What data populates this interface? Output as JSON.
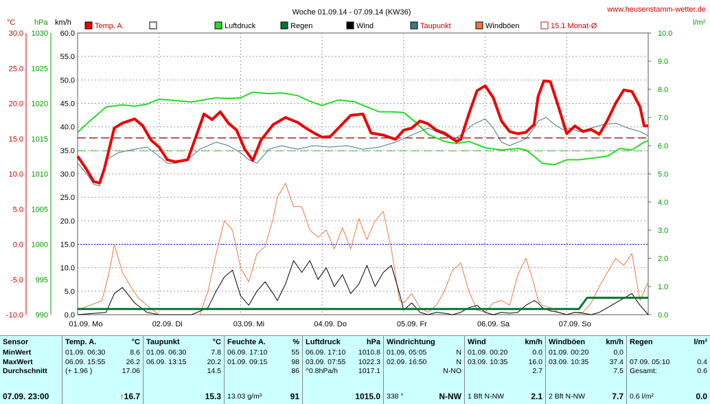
{
  "title": "Woche 01.09.14 - 07.09.14 (KW36)",
  "site": "www.heusenstamm-wetter.de",
  "axes": {
    "temp_unit": "°C",
    "hpa_unit": "hPa",
    "kmh_unit": "km/h",
    "rain_unit": "l/m²",
    "temp_ticks": [
      "30.0",
      "25.0",
      "20.0",
      "15.0",
      "10.0",
      "5.0",
      "0.0",
      "-5.0",
      "-10.0"
    ],
    "hpa_ticks": [
      "1030",
      "1025",
      "1020",
      "1015",
      "1010",
      "1005",
      "1000",
      "995",
      "990"
    ],
    "kmh_ticks": [
      "60.0",
      "55.0",
      "50.0",
      "45.0",
      "40.0",
      "35.0",
      "30.0",
      "25.0",
      "20.0",
      "15.0",
      "10.0",
      "5.0",
      "0.0"
    ],
    "rain_ticks": [
      "10.0",
      "9.0",
      "8.0",
      "7.0",
      "6.0",
      "5.0",
      "4.0",
      "3.0",
      "2.0",
      "1.0",
      "0.0"
    ],
    "day_labels": [
      "01.09.  Mo",
      "02.09.  Di",
      "03.09.  Mi",
      "04.09.  Do",
      "05.09.  Fr",
      "06.09.  Sa",
      "07.09.  So"
    ]
  },
  "legend": [
    "Temp. A.",
    "",
    "Luftdruck",
    "Regen",
    "Wind",
    "Taupunkt",
    "Windböen",
    "15.1 Monat-Ø"
  ],
  "colors": {
    "temp": "#ee0000",
    "pressure": "#22dd22",
    "rain": "#007733",
    "wind": "#000000",
    "dew": "#447788",
    "gust": "#ee7744",
    "avg": "#aa2222",
    "axis_temp": "#cc0000",
    "axis_hpa": "#009900",
    "axis_rain": "#009900"
  },
  "chart_data": {
    "type": "line",
    "title": "Woche 01.09.14 - 07.09.14 (KW36)",
    "x_unit": "days from 01.09.14 00:00",
    "xlim": [
      0,
      7
    ],
    "temp_axis": [
      -10,
      30
    ],
    "hpa_axis": [
      990,
      1030
    ],
    "kmh_axis": [
      0,
      60
    ],
    "rain_axis": [
      0,
      10
    ],
    "month_avg_temp": 15.1,
    "series": [
      {
        "name": "Temp. A.",
        "unit": "°C",
        "x": [
          0,
          0.1,
          0.2,
          0.27,
          0.33,
          0.45,
          0.55,
          0.7,
          0.8,
          0.9,
          1.0,
          1.1,
          1.2,
          1.35,
          1.45,
          1.55,
          1.65,
          1.75,
          1.85,
          1.95,
          2.05,
          2.15,
          2.25,
          2.4,
          2.55,
          2.7,
          2.8,
          2.9,
          3.0,
          3.1,
          3.2,
          3.35,
          3.5,
          3.6,
          3.75,
          3.9,
          4.0,
          4.1,
          4.2,
          4.3,
          4.4,
          4.5,
          4.6,
          4.65,
          4.7,
          4.8,
          4.9,
          5.0,
          5.1,
          5.2,
          5.3,
          5.4,
          5.5,
          5.6,
          5.65,
          5.72,
          5.8,
          5.9,
          6.0,
          6.1,
          6.2,
          6.3,
          6.4,
          6.5,
          6.6,
          6.7,
          6.8,
          6.9,
          6.95,
          7.0
        ],
        "y": [
          12.5,
          10.8,
          8.9,
          8.7,
          10.8,
          16.5,
          17.2,
          17.8,
          16.8,
          14.8,
          13.8,
          12.0,
          11.7,
          12.0,
          15.2,
          18.5,
          17.7,
          18.8,
          17.2,
          16.2,
          13.5,
          11.9,
          14.8,
          17.0,
          18.0,
          17.3,
          16.5,
          15.8,
          15.2,
          15.3,
          16.5,
          18.3,
          18.5,
          15.8,
          15.5,
          14.9,
          16.2,
          16.5,
          17.5,
          17.1,
          16.2,
          15.8,
          15.0,
          14.6,
          14.9,
          18.5,
          21.8,
          22.5,
          20.8,
          17.5,
          16.0,
          15.7,
          15.9,
          17.0,
          21.0,
          23.2,
          23.1,
          19.5,
          15.7,
          16.8,
          16.0,
          16.3,
          15.6,
          17.6,
          20.0,
          21.9,
          21.7,
          19.5,
          16.8,
          16.8
        ]
      },
      {
        "name": "Taupunkt",
        "unit": "°C",
        "x": [
          0,
          0.1,
          0.2,
          0.27,
          0.35,
          0.5,
          0.7,
          0.85,
          1.0,
          1.1,
          1.2,
          1.35,
          1.5,
          1.7,
          1.85,
          2.0,
          2.1,
          2.2,
          2.35,
          2.5,
          2.7,
          2.9,
          3.1,
          3.3,
          3.5,
          3.7,
          3.9,
          4.1,
          4.3,
          4.5,
          4.6,
          4.7,
          4.85,
          5.0,
          5.1,
          5.2,
          5.3,
          5.4,
          5.5,
          5.6,
          5.65,
          5.75,
          5.85,
          5.95,
          6.05,
          6.15,
          6.3,
          6.45,
          6.6,
          6.75,
          6.9,
          7.0
        ],
        "y": [
          11.5,
          10.2,
          8.5,
          8.3,
          12.0,
          13.0,
          13.5,
          13.8,
          12.5,
          11.5,
          11.5,
          12.0,
          13.5,
          14.5,
          14.0,
          13.0,
          12.0,
          11.5,
          13.5,
          14.0,
          13.5,
          14.0,
          13.8,
          14.0,
          13.5,
          13.8,
          14.5,
          15.5,
          16.5,
          15.5,
          14.8,
          15.5,
          17.0,
          17.8,
          16.5,
          14.5,
          14.0,
          14.5,
          15.0,
          16.5,
          17.5,
          18.0,
          17.0,
          16.3,
          16.5,
          16.0,
          16.5,
          17.0,
          17.2,
          16.5,
          16.0,
          15.4
        ]
      },
      {
        "name": "Luftdruck",
        "unit": "hPa",
        "x": [
          0,
          0.15,
          0.35,
          0.55,
          0.7,
          0.85,
          1.0,
          1.2,
          1.4,
          1.55,
          1.7,
          1.85,
          2.0,
          2.15,
          2.35,
          2.5,
          2.7,
          2.85,
          3.0,
          3.2,
          3.4,
          3.55,
          3.7,
          3.85,
          4.0,
          4.15,
          4.3,
          4.5,
          4.65,
          4.8,
          5.0,
          5.2,
          5.4,
          5.5,
          5.6,
          5.7,
          5.85,
          6.0,
          6.15,
          6.3,
          6.5,
          6.65,
          6.8,
          6.95,
          7.0
        ],
        "y": [
          1015.9,
          1017.5,
          1019.5,
          1019.8,
          1019.6,
          1019.9,
          1020.6,
          1020.4,
          1020.2,
          1020.5,
          1020.8,
          1020.7,
          1020.8,
          1021.6,
          1021.4,
          1021.5,
          1021.1,
          1020.3,
          1019.7,
          1020.5,
          1020.2,
          1019.5,
          1018.8,
          1018.8,
          1018.7,
          1017.3,
          1015.6,
          1014.6,
          1014.3,
          1014.6,
          1013.7,
          1013.4,
          1013.6,
          1013.4,
          1012.5,
          1011.5,
          1011.3,
          1012.0,
          1012.0,
          1012.2,
          1012.5,
          1013.6,
          1013.4,
          1014.5,
          1014.7
        ]
      },
      {
        "name": "Wind",
        "unit": "km/h",
        "x": [
          0,
          0.35,
          0.45,
          0.55,
          0.7,
          0.85,
          1.0,
          1.4,
          1.6,
          1.7,
          1.8,
          1.9,
          2.0,
          2.1,
          2.2,
          2.3,
          2.4,
          2.45,
          2.55,
          2.65,
          2.75,
          2.85,
          2.95,
          3.05,
          3.15,
          3.25,
          3.35,
          3.45,
          3.55,
          3.65,
          3.75,
          3.85,
          3.95,
          4.0,
          4.1,
          4.2,
          4.3,
          4.4,
          4.5,
          4.6,
          4.7,
          4.8,
          4.9,
          5.0,
          5.1,
          5.2,
          5.3,
          5.4,
          5.5,
          5.6,
          5.65,
          5.7,
          5.8,
          5.9,
          6.0,
          6.1,
          6.2,
          6.3,
          6.4,
          6.5,
          6.6,
          6.7,
          6.8,
          6.9,
          7.0
        ],
        "y": [
          0,
          0.5,
          4.5,
          5.8,
          2.5,
          0.5,
          0,
          0,
          1.5,
          5.0,
          8.0,
          9.5,
          4.0,
          2.0,
          5.0,
          7.0,
          4.5,
          3.0,
          6.5,
          11.5,
          9.0,
          11.5,
          7.5,
          10.0,
          6.0,
          8.5,
          4.5,
          6.5,
          10.5,
          6.0,
          9.0,
          10.5,
          4.5,
          1.0,
          2.5,
          0.5,
          0,
          0.5,
          0.3,
          0,
          0.5,
          1.5,
          2.0,
          0.5,
          0,
          0.5,
          0.3,
          0.5,
          2.0,
          3.0,
          2.5,
          1.5,
          0.8,
          0.5,
          0,
          0.5,
          0.3,
          0,
          0.5,
          1.5,
          2.5,
          3.5,
          4.5,
          2.0,
          0
        ]
      },
      {
        "name": "Windböen",
        "unit": "km/h",
        "x": [
          0,
          0.3,
          0.4,
          0.45,
          0.55,
          0.65,
          0.75,
          0.85,
          1.0,
          1.5,
          1.6,
          1.7,
          1.8,
          1.9,
          2.0,
          2.1,
          2.2,
          2.3,
          2.4,
          2.45,
          2.55,
          2.65,
          2.75,
          2.85,
          2.95,
          3.05,
          3.15,
          3.25,
          3.35,
          3.45,
          3.55,
          3.65,
          3.75,
          3.85,
          3.95,
          4.0,
          4.1,
          4.2,
          4.3,
          4.4,
          4.5,
          4.6,
          4.7,
          4.8,
          4.9,
          5.0,
          5.1,
          5.2,
          5.3,
          5.4,
          5.5,
          5.6,
          5.65,
          5.7,
          5.8,
          5.9,
          6.0,
          6.1,
          6.2,
          6.3,
          6.4,
          6.5,
          6.6,
          6.7,
          6.8,
          6.9,
          7.0
        ],
        "y": [
          1.0,
          3.0,
          10.0,
          15.0,
          9.0,
          6.0,
          3.5,
          2.0,
          0,
          0,
          5.0,
          13.0,
          20.0,
          18.0,
          10.0,
          7.0,
          13.0,
          14.5,
          20.5,
          25.0,
          28.0,
          23.0,
          23.0,
          18.0,
          16.5,
          18.0,
          14.0,
          18.5,
          14.0,
          20.5,
          16.0,
          20.0,
          22.0,
          14.0,
          3.0,
          2.5,
          4.5,
          1.5,
          0.5,
          2.0,
          5.0,
          9.5,
          11.0,
          5.0,
          1.0,
          0.5,
          2.5,
          3.0,
          2.0,
          8.5,
          12.0,
          6.5,
          3.0,
          2.0,
          1.5,
          0.5,
          0,
          0.5,
          0.5,
          2.5,
          6.0,
          9.0,
          12.0,
          10.5,
          13.0,
          3.0,
          7.0
        ]
      },
      {
        "name": "Regen",
        "unit": "l/m²",
        "x": [
          0,
          5.95,
          6.15,
          6.25,
          7.0
        ],
        "y": [
          0.2,
          0.2,
          0.2,
          0.6,
          0.6
        ]
      }
    ]
  },
  "stats": {
    "sensor": {
      "header": "Sensor",
      "rows": [
        "MinWert",
        "MaxWert",
        "Durchschnitt"
      ],
      "last": "07.09. 23:00"
    },
    "temp": {
      "header": "Temp. A.",
      "unit": "°C",
      "rows": [
        [
          "01.09.  06:30",
          "8.6"
        ],
        [
          "06.09.  15:55",
          "26.2"
        ],
        [
          "(+ 1.96 )",
          "17.06"
        ]
      ],
      "last": "16.7",
      "arrow": "↑"
    },
    "dew": {
      "header": "Taupunkt",
      "unit": "°C",
      "rows": [
        [
          "01.09.  06:30",
          "7.8"
        ],
        [
          "06.09.  13:15",
          "20.2"
        ],
        [
          "",
          "14.5"
        ]
      ],
      "last": "15.3"
    },
    "hum": {
      "header": "Feuchte A.",
      "unit": "%",
      "rows": [
        [
          "06.09.  17:10",
          "55"
        ],
        [
          "01.09.  09:15",
          "98"
        ],
        [
          "",
          "86"
        ]
      ],
      "last_l": "13.03 g/m³",
      "last": "91"
    },
    "pres": {
      "header": "Luftdruck",
      "unit": "hPa",
      "rows": [
        [
          "06.09.  17:10",
          "1010.8"
        ],
        [
          "03.09.  07:55",
          "1022.3"
        ],
        [
          "^0.8hPa/h",
          "1017.1"
        ]
      ],
      "last": "1015.0"
    },
    "dir": {
      "header": "Windrichtung",
      "unit": "",
      "rows": [
        [
          "01.09.  05:05",
          "N"
        ],
        [
          "02.09.  16:50",
          "N"
        ],
        [
          "",
          "N-NO"
        ]
      ],
      "last_l": "338 °",
      "last": "N-NW"
    },
    "wind": {
      "header": "Wind",
      "unit": "km/h",
      "rows": [
        [
          "01.09.  00:20",
          "0.0"
        ],
        [
          "03.09.  10:35",
          "16.0"
        ],
        [
          "",
          "2.7"
        ]
      ],
      "last_l": "1 Bft N-NW",
      "last": "2.1"
    },
    "gust": {
      "header": "Windböen",
      "unit": "km/h",
      "rows": [
        [
          "01.09.  00:20",
          "0.0"
        ],
        [
          "03.09.  10:35",
          "37.4"
        ],
        [
          "",
          "7.5"
        ]
      ],
      "last_l": "2 Bft N-NW",
      "last": "7.7"
    },
    "rain": {
      "header": "Regen",
      "unit": "l/m²",
      "rows": [
        [
          "",
          ""
        ],
        [
          "07.09.  05:10",
          "0.4"
        ],
        [
          "Gesamt:",
          "0.6"
        ]
      ],
      "last_l": "0.6 l/m²",
      "last": "0.0"
    }
  }
}
